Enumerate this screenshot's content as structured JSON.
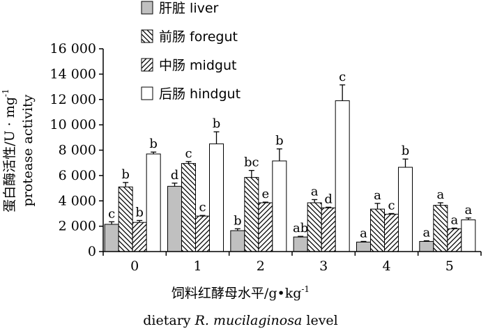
{
  "chart_data": {
    "type": "bar",
    "xlabel_cn": "饲料红酵母水平/g•kg",
    "xlabel_cn_sup": "-1",
    "xlabel_en_pre": "dietary ",
    "xlabel_en_italic": "R. mucilaginosa",
    "xlabel_en_post": " level",
    "ylabel_cn": "蛋白酶活性/U · mg",
    "ylabel_cn_sup": "-1",
    "ylabel_en": "protease activity",
    "categories": [
      "0",
      "1",
      "2",
      "3",
      "4",
      "5"
    ],
    "ylim": [
      0,
      16000
    ],
    "yticks": [
      0,
      2000,
      4000,
      6000,
      8000,
      10000,
      12000,
      14000,
      16000
    ],
    "ytick_labels": [
      "0",
      "2 000",
      "4 000",
      "6 000",
      "8 000",
      "10 000",
      "12 000",
      "14 000",
      "16 000"
    ],
    "legend_position": "top-left",
    "series": [
      {
        "name": "肝脏 liver",
        "pattern": "solid-gray",
        "values": [
          2150,
          5150,
          1650,
          1150,
          750,
          800
        ],
        "errors": [
          200,
          250,
          150,
          50,
          50,
          50
        ],
        "labels": [
          "c",
          "d",
          "b",
          "ab",
          "a",
          "a"
        ]
      },
      {
        "name": "前肠 foregut",
        "pattern": "backslash-hatch",
        "values": [
          5100,
          6950,
          5850,
          3850,
          3350,
          3650
        ],
        "errors": [
          350,
          150,
          550,
          250,
          450,
          200
        ],
        "labels": [
          "b",
          "c",
          "bc",
          "a",
          "a",
          "a"
        ]
      },
      {
        "name": "中肠 midgut",
        "pattern": "slash-hatch",
        "values": [
          2300,
          2800,
          3850,
          3450,
          2950,
          1800
        ],
        "errors": [
          150,
          50,
          50,
          50,
          50,
          50
        ],
        "labels": [
          "b",
          "c",
          "e",
          "d",
          "c",
          "a"
        ]
      },
      {
        "name": "后肠 hindgut",
        "pattern": "white",
        "values": [
          7700,
          8500,
          7150,
          11900,
          6650,
          2500
        ],
        "errors": [
          150,
          950,
          950,
          1250,
          650,
          150
        ],
        "labels": [
          "b",
          "b",
          "b",
          "c",
          "b",
          "a"
        ]
      }
    ]
  }
}
